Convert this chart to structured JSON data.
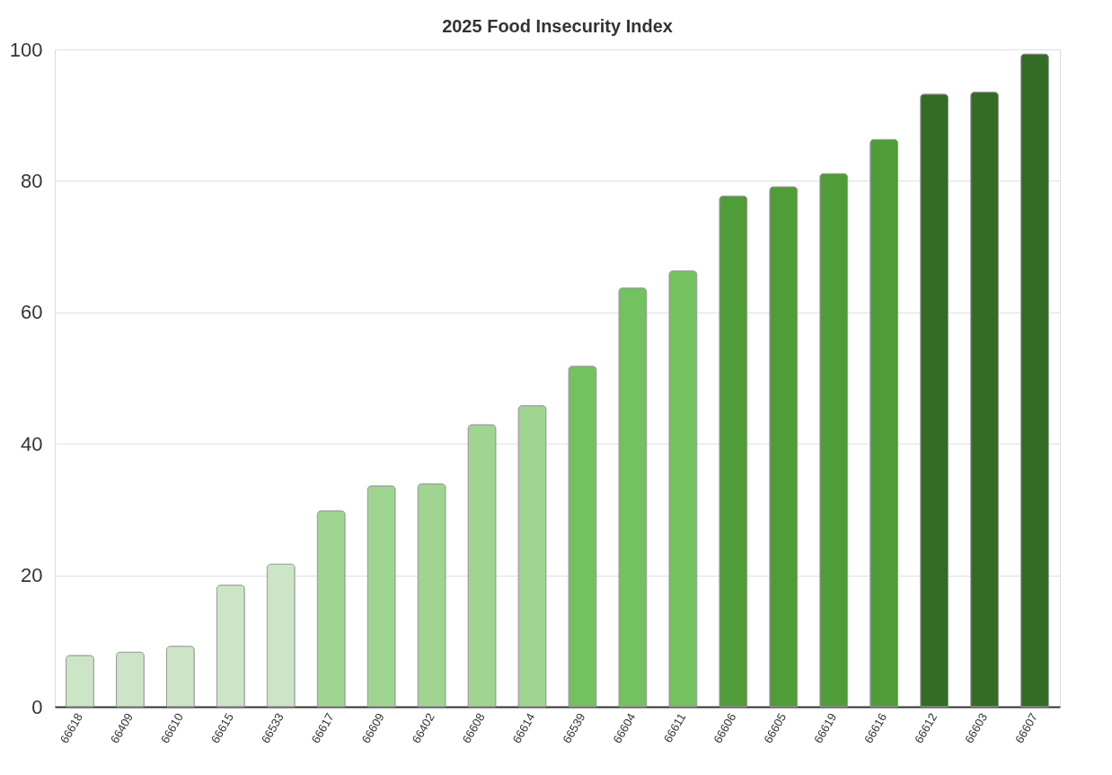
{
  "chart_data": {
    "type": "bar",
    "title": "2025 Food Insecurity Index",
    "categories": [
      "66618",
      "66409",
      "66610",
      "66615",
      "66533",
      "66617",
      "66609",
      "66402",
      "66608",
      "66614",
      "66539",
      "66604",
      "66611",
      "66606",
      "66605",
      "66619",
      "66616",
      "66612",
      "66603",
      "66607"
    ],
    "values": [
      7.8,
      8.3,
      9.2,
      18.5,
      21.7,
      29.8,
      33.6,
      33.9,
      42.9,
      45.8,
      51.8,
      63.7,
      66.3,
      77.7,
      79.1,
      81.1,
      86.3,
      93.2,
      93.5,
      99.3
    ],
    "colors": [
      "#cce5c6",
      "#cce5c6",
      "#cce5c6",
      "#cce5c6",
      "#cce5c6",
      "#9fd591",
      "#9fd591",
      "#9fd591",
      "#9fd591",
      "#9fd591",
      "#74c15f",
      "#74c15f",
      "#74c15f",
      "#4f9c38",
      "#4f9c38",
      "#4f9c38",
      "#4f9c38",
      "#346b25",
      "#346b25",
      "#346b25"
    ],
    "ylim": [
      0,
      100
    ],
    "yticks": [
      0,
      20,
      40,
      60,
      80,
      100
    ],
    "grid": "y"
  }
}
